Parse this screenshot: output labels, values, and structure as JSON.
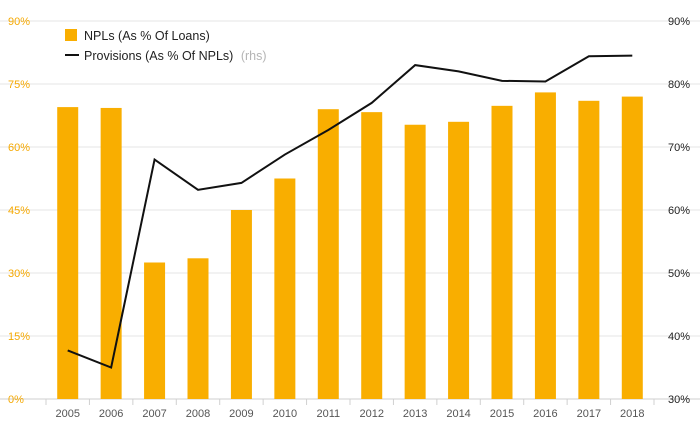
{
  "chart_data": {
    "type": "bar+line",
    "categories": [
      "2005",
      "2006",
      "2007",
      "2008",
      "2009",
      "2010",
      "2011",
      "2012",
      "2013",
      "2014",
      "2015",
      "2016",
      "2017",
      "2018"
    ],
    "series": [
      {
        "name": "NPLs (As % Of Loans)",
        "axis": "left",
        "type": "bar",
        "values": [
          69.5,
          69.3,
          32.5,
          33.5,
          45.0,
          52.5,
          69.0,
          68.3,
          65.3,
          66.0,
          69.8,
          73.0,
          71.0,
          72.0
        ]
      },
      {
        "name": "Provisions (As % Of NPLs)",
        "name_suffix": "(rhs)",
        "axis": "right",
        "type": "line",
        "values": [
          37.7,
          35.0,
          68.0,
          63.2,
          64.3,
          68.8,
          72.7,
          77.0,
          83.0,
          82.0,
          80.5,
          80.4,
          84.4,
          84.5
        ]
      }
    ],
    "y_left": {
      "ticks": [
        "0%",
        "15%",
        "30%",
        "45%",
        "60%",
        "75%",
        "90%"
      ],
      "range": [
        0,
        90
      ]
    },
    "y_right": {
      "ticks": [
        "30%",
        "40%",
        "50%",
        "60%",
        "70%",
        "80%",
        "90%"
      ],
      "range": [
        30,
        90
      ]
    },
    "grid": true,
    "legend_position": "top-left",
    "colors": {
      "bar": "#F9AE00",
      "line": "#111111",
      "left_axis_text": "#F5A800",
      "grid": "#e6e6e6"
    }
  }
}
